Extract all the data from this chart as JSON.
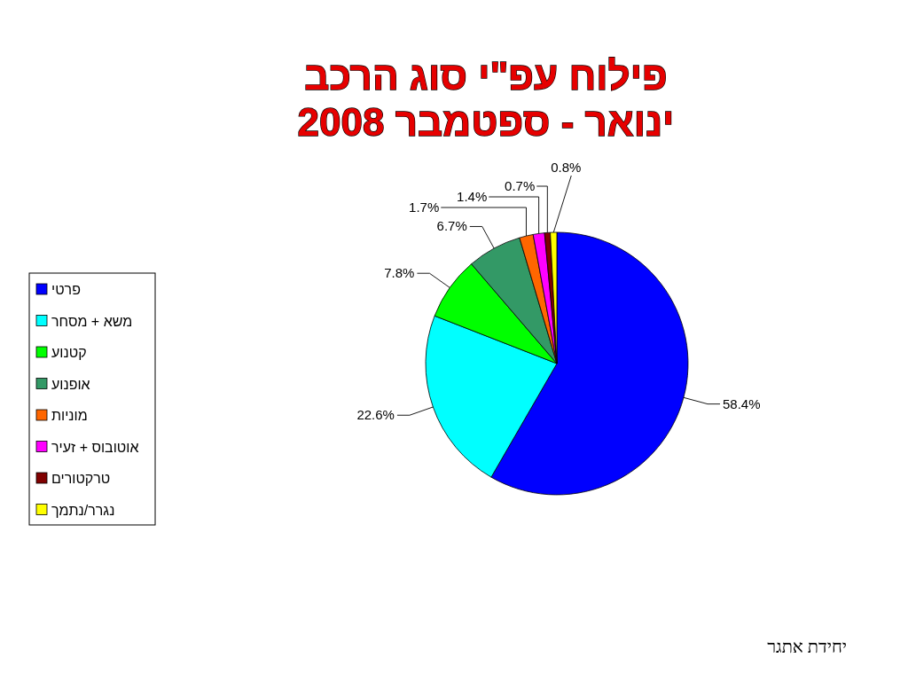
{
  "chart_data": {
    "type": "pie",
    "title": "פילוח עפ\"י סוג הרכב",
    "subtitle": "ינואר - ספטמבר 2008",
    "categories": [
      "פרטי",
      "משא + מסחר",
      "קטנוע",
      "אופנוע",
      "מוניות",
      "אוטובוס + זעיר",
      "טרקטורים",
      "נגרר/נתמך"
    ],
    "values": [
      58.4,
      22.6,
      7.8,
      6.7,
      1.7,
      1.4,
      0.7,
      0.8
    ],
    "colors": [
      "#0000ff",
      "#00ffff",
      "#00ff00",
      "#339966",
      "#ff6600",
      "#ff00ff",
      "#800000",
      "#ffff00"
    ],
    "value_labels": [
      "58.4%",
      "22.6%",
      "7.8%",
      "6.7%",
      "1.7%",
      "1.4%",
      "0.7%",
      "0.8%"
    ],
    "legend": "left",
    "annotations": [
      "יחידת אתגר"
    ]
  }
}
